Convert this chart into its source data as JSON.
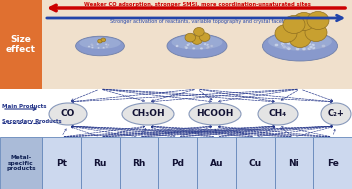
{
  "size_effect_label": "Size\neffect",
  "size_effect_bg": "#e07030",
  "size_effect_text_color": "white",
  "arrow_top_text": "Weaker CO adsorption, stronger SMSI, more coordination-unsaturated sites",
  "arrow_top_color": "#cc0000",
  "arrow_bottom_text": "Stronger activation of reactants, variable topography and crystal facet",
  "arrow_bottom_color": "#2244aa",
  "panel_bg": "#f0e0cc",
  "main_products": [
    "CO",
    "CH₃OH",
    "HCOOH",
    "CH₄"
  ],
  "secondary_product": "C₂+",
  "metals": [
    "Pt",
    "Ru",
    "Rh",
    "Pd",
    "Au",
    "Cu",
    "Ni",
    "Fe"
  ],
  "metals_header": "Metal-\nspecific\nproducts",
  "label_main": "Main Products",
  "label_secondary": "Secondary Products",
  "table_bg": "#ccd8ee",
  "table_header_bg": "#aabbd8",
  "table_border": "#6688bb",
  "product_oval_color": "#e4e4e4",
  "product_oval_border": "#8899bb",
  "arrow_line_color": "#223388",
  "support_color": "#8899cc",
  "support_top_color": "#aabbdd",
  "metal_np_color": "#c8a030",
  "sphere_color": "#dde8f8",
  "sphere_color2": "#c0c8e0"
}
